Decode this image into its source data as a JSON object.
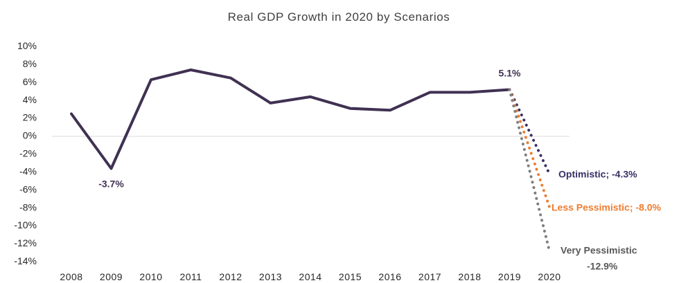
{
  "chart_data": {
    "type": "line",
    "title": "Real GDP Growth in 2020 by Scenarios",
    "xlabel": "",
    "ylabel": "",
    "x": [
      "2008",
      "2009",
      "2010",
      "2011",
      "2012",
      "2013",
      "2014",
      "2015",
      "2016",
      "2017",
      "2018",
      "2019",
      "2020"
    ],
    "ylim": [
      -14,
      10
    ],
    "yticks": [
      10,
      8,
      6,
      4,
      2,
      0,
      -2,
      -4,
      -6,
      -8,
      -10,
      -12,
      -14
    ],
    "ytick_labels": [
      "10%",
      "8%",
      "6%",
      "4%",
      "2%",
      "0%",
      "-2%",
      "-4%",
      "-6%",
      "-8%",
      "-10%",
      "-12%",
      "-14%"
    ],
    "grid": false,
    "legend": "none",
    "series": [
      {
        "color": "#403152",
        "style": "solid",
        "points": [
          [
            2008,
            2.4
          ],
          [
            2009,
            -3.7
          ],
          [
            2010,
            6.2
          ],
          [
            2011,
            7.3
          ],
          [
            2012,
            6.4
          ],
          [
            2013,
            3.6
          ],
          [
            2014,
            4.3
          ],
          [
            2015,
            3.0
          ],
          [
            2016,
            2.8
          ],
          [
            2017,
            4.8
          ],
          [
            2018,
            4.8
          ],
          [
            2019,
            5.1
          ]
        ],
        "data_labels": [
          {
            "x": 2009,
            "y": -3.7,
            "text": "-3.7%"
          },
          {
            "x": 2019,
            "y": 5.1,
            "text": "5.1%"
          }
        ]
      },
      {
        "color": "#3a2f63",
        "style": "dotted",
        "points": [
          [
            2019,
            5.1
          ],
          [
            2020,
            -4.3
          ]
        ],
        "data_labels": [
          {
            "x": 2020,
            "y": -4.3,
            "text": "Optimistic; -4.3%"
          }
        ]
      },
      {
        "color": "#ed7d31",
        "style": "dotted",
        "points": [
          [
            2019,
            5.1
          ],
          [
            2020,
            -8.0
          ]
        ],
        "data_labels": [
          {
            "x": 2020,
            "y": -8.0,
            "text": "Less Pessimistic; -8.0%"
          }
        ]
      },
      {
        "color": "#7f7f7f",
        "style": "dotted",
        "points": [
          [
            2019,
            5.1
          ],
          [
            2020,
            -12.9
          ]
        ],
        "data_labels": [
          {
            "x": 2020,
            "y": -12.9,
            "text": "Very Pessimistic",
            "text2": "-12.9%"
          }
        ]
      }
    ]
  }
}
